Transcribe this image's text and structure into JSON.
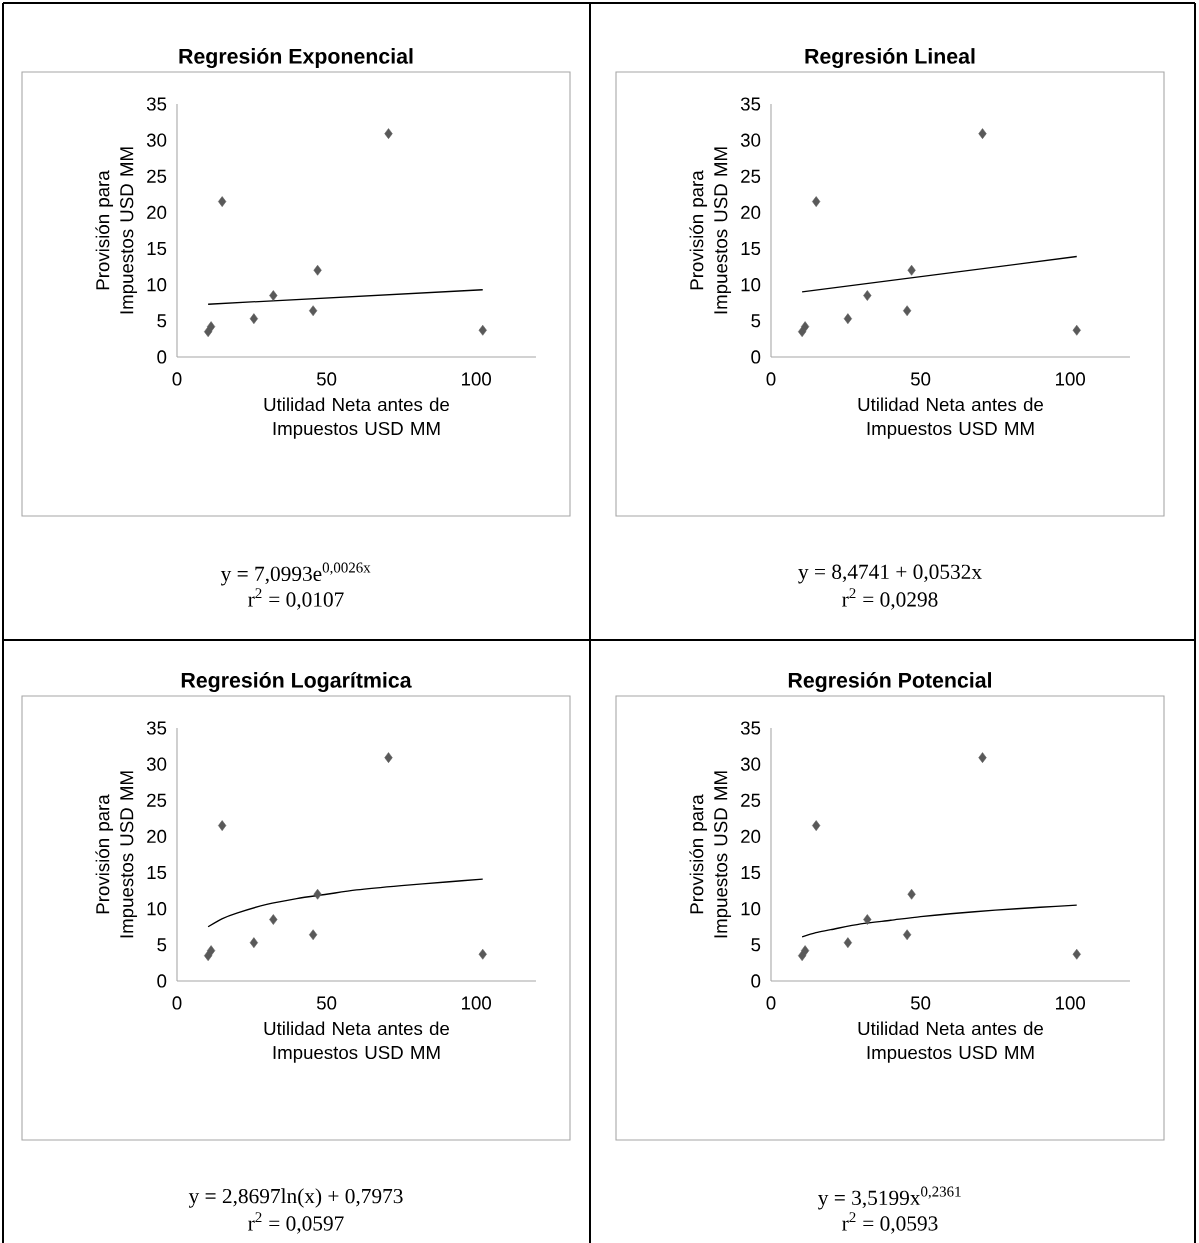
{
  "chart_data": [
    {
      "type": "scatter",
      "title": "Regresión Exponencial",
      "xlabel": "Utilidad Neta antes de Impuestos USD MM",
      "ylabel": "Provisión para Impuestos USD MM",
      "xlim": [
        0,
        120
      ],
      "ylim": [
        0,
        35
      ],
      "xticks": [
        0,
        50,
        100
      ],
      "yticks": [
        0,
        5,
        10,
        15,
        20,
        25,
        30,
        35
      ],
      "series": [
        {
          "type": "scatter",
          "marker": "diamond",
          "color": "#595959",
          "x": [
            10.4,
            11.4,
            15.1,
            25.7,
            32.2,
            45.5,
            47.0,
            70.7,
            102.2
          ],
          "values": [
            3.5,
            4.2,
            21.5,
            5.3,
            8.5,
            6.4,
            12.0,
            30.9,
            3.7
          ]
        },
        {
          "type": "line",
          "marker": "none",
          "color": "#000000",
          "x": [
            10.4,
            102.2
          ],
          "values": [
            7.3,
            9.3
          ]
        }
      ],
      "annotations": [
        "y = 7,0993e$^{0,0026x}$",
        "r$^{2}$ =  0,0107"
      ]
    },
    {
      "type": "scatter",
      "title": "Regresión Lineal",
      "xlabel": "Utilidad Neta antes de Impuestos USD MM",
      "ylabel": "Provisión para Impuestos USD MM",
      "xlim": [
        0,
        120
      ],
      "ylim": [
        0,
        35
      ],
      "xticks": [
        0,
        50,
        100
      ],
      "yticks": [
        0,
        5,
        10,
        15,
        20,
        25,
        30,
        35
      ],
      "series": [
        {
          "type": "scatter",
          "marker": "diamond",
          "color": "#595959",
          "x": [
            10.4,
            11.4,
            15.1,
            25.7,
            32.2,
            45.5,
            47.0,
            70.7,
            102.2
          ],
          "values": [
            3.5,
            4.2,
            21.5,
            5.3,
            8.5,
            6.4,
            12.0,
            30.9,
            3.7
          ]
        },
        {
          "type": "line",
          "marker": "none",
          "color": "#000000",
          "x": [
            10.4,
            102.2
          ],
          "values": [
            9.0,
            13.9
          ]
        }
      ],
      "annotations": [
        "y = 8,4741 + 0,0532x",
        "r$^{2}$ =  0,0298"
      ]
    },
    {
      "type": "scatter",
      "title": "Regresión Logarítmica",
      "xlabel": "Utilidad Neta antes de Impuestos USD MM",
      "ylabel": "Provisión para Impuestos USD MM",
      "xlim": [
        0,
        120
      ],
      "ylim": [
        0,
        35
      ],
      "xticks": [
        0,
        50,
        100
      ],
      "yticks": [
        0,
        5,
        10,
        15,
        20,
        25,
        30,
        35
      ],
      "series": [
        {
          "type": "scatter",
          "marker": "diamond",
          "color": "#595959",
          "x": [
            10.4,
            11.4,
            15.1,
            25.7,
            32.2,
            45.5,
            47.0,
            70.7,
            102.2
          ],
          "values": [
            3.5,
            4.2,
            21.5,
            5.3,
            8.5,
            6.4,
            12.0,
            30.9,
            3.7
          ]
        },
        {
          "type": "line",
          "marker": "none",
          "color": "#000000",
          "x": [
            10.4,
            15,
            20,
            30,
            40,
            50,
            60,
            75,
            90,
            102.2
          ],
          "values": [
            7.5,
            8.6,
            9.4,
            10.6,
            11.4,
            12.0,
            12.6,
            13.2,
            13.7,
            14.1
          ]
        }
      ],
      "annotations": [
        "y = 2,8697ln(x) + 0,7973",
        "r$^{2}$ =  0,0597"
      ]
    },
    {
      "type": "scatter",
      "title": "Regresión Potencial",
      "xlabel": "Utilidad Neta antes de Impuestos USD MM",
      "ylabel": "Provisión para Impuestos USD MM",
      "xlim": [
        0,
        120
      ],
      "ylim": [
        0,
        35
      ],
      "xticks": [
        0,
        50,
        100
      ],
      "yticks": [
        0,
        5,
        10,
        15,
        20,
        25,
        30,
        35
      ],
      "series": [
        {
          "type": "scatter",
          "marker": "diamond",
          "color": "#595959",
          "x": [
            10.4,
            11.4,
            15.1,
            25.7,
            32.2,
            45.5,
            47.0,
            70.7,
            102.2
          ],
          "values": [
            3.5,
            4.2,
            21.5,
            5.3,
            8.5,
            6.4,
            12.0,
            30.9,
            3.7
          ]
        },
        {
          "type": "line",
          "marker": "none",
          "color": "#000000",
          "x": [
            10.4,
            15,
            20,
            30,
            40,
            50,
            60,
            75,
            90,
            102.2
          ],
          "values": [
            6.1,
            6.7,
            7.1,
            7.9,
            8.4,
            8.9,
            9.3,
            9.8,
            10.2,
            10.5
          ]
        }
      ],
      "annotations": [
        "y = 3,5199x$^{0,2361}$",
        "r$^{2}$ =  0,0593"
      ]
    }
  ]
}
